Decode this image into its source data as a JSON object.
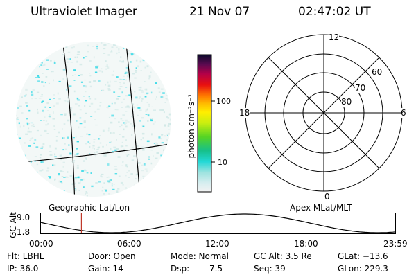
{
  "header": {
    "title": "Ultraviolet Imager",
    "date": "21 Nov 07",
    "time": "02:47:02 UT"
  },
  "colorbar": {
    "unit_label": "photon cm⁻²s⁻¹",
    "ticks": [
      "100",
      "10"
    ]
  },
  "polar": {
    "hour_labels": {
      "top": "12",
      "left": "18",
      "right": "6",
      "bottom": "0"
    },
    "lat_labels": [
      "60",
      "70",
      "80"
    ]
  },
  "timeline": {
    "y_axis_label": "GC Alt",
    "y_ticks": [
      "9.0",
      "1.8"
    ],
    "left_caption": "Geographic Lat/Lon",
    "right_caption": "Apex MLat/MLT",
    "x_ticks": [
      "00:00",
      "06:00",
      "12:00",
      "18:00",
      "23:59"
    ],
    "marker_fraction": 0.115
  },
  "status": {
    "flt": "Flt: LBHL",
    "ip": "IP: 36.0",
    "door": "Door: Open",
    "gain": "Gain: 14",
    "mode": "Mode: Normal",
    "dsp_label": "Dsp:",
    "dsp_value": "7.5",
    "gc_alt": "GC Alt: 3.5 Re",
    "seq": "Seq: 39",
    "glat": "GLat: −13.6",
    "glon": "GLon: 229.3"
  },
  "colors": {
    "cyan_speckle": "#2fd8e6",
    "pale_speckle": "#cfe8e6",
    "marker": "#c0392b"
  }
}
